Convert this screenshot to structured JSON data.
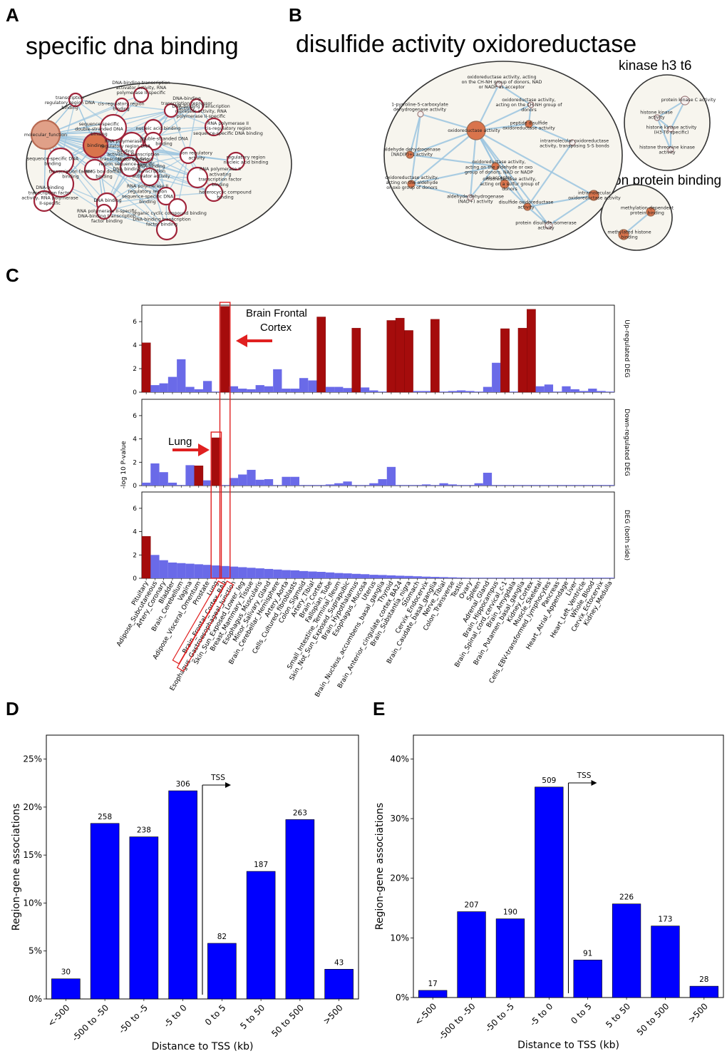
{
  "panels": {
    "a": {
      "label": "A",
      "title": "specific dna binding",
      "nodes": [
        {
          "text": "DNA-binding transcription activator activity, RNA polymerase II-specific"
        },
        {
          "text": "DNA-binding transcription repressor activity"
        },
        {
          "text": "transcription regulatory region DNA binding"
        },
        {
          "text": "cis-regulatory region binding"
        },
        {
          "text": "DNA-binding transcription repressor activity, RNA polymerase II-specific"
        },
        {
          "text": "sequence-specific double-stranded DNA binding"
        },
        {
          "text": "nucleic acid binding"
        },
        {
          "text": "molecular_function"
        },
        {
          "text": "binding"
        },
        {
          "text": "RNA polymerase II cis-regulatory region sequence-specific DNA binding"
        },
        {
          "text": "double-stranded DNA binding"
        },
        {
          "text": "RNA polymerase II regulatory region DNA binding"
        },
        {
          "text": "HMG box domain binding"
        },
        {
          "text": "activating transcription factor binding"
        },
        {
          "text": "ion regulatory activity"
        },
        {
          "text": "sequence-specific DNA binding"
        },
        {
          "text": "transcription regulatory region sequence-specific DNA binding"
        },
        {
          "text": "DNA-binding transcription activator activity"
        },
        {
          "text": "RNA polymerase II activating transcription factor binding"
        },
        {
          "text": "transcription factor binding"
        },
        {
          "text": "regulatory region nucleic acid binding"
        },
        {
          "text": "DNA-binding transcription factor activity, RNA polymerase II-specific"
        },
        {
          "text": "DNA binding"
        },
        {
          "text": "RNA polymerase II regulatory region sequence-specific DNA binding"
        },
        {
          "text": "heterocyclic compound binding"
        },
        {
          "text": "organic cyclic compound binding"
        },
        {
          "text": "RNA polymerase II-specific DNA-binding transcription factor binding"
        },
        {
          "text": "DNA-binding transcription factor binding"
        }
      ]
    },
    "b": {
      "label": "B",
      "title": "disulfide activity oxidoreductase",
      "subtitle1": "kinase h3 t6",
      "subtitle2": "methylation protein binding",
      "nodes": [
        {
          "text": "oxidoreductase activity, acting on the CH-NH group of donors, NAD or NADP as acceptor"
        },
        {
          "text": "1-pyrroline-5-carboxylate dehydrogenase activity"
        },
        {
          "text": "oxidoreductase activity, acting on the CH-NH group of donors"
        },
        {
          "text": "oxidoreductase activity"
        },
        {
          "text": "peptide disulfide oxidoreductase activity"
        },
        {
          "text": "aldehyde dehydrogenase [NAD(P)+] activity"
        },
        {
          "text": "oxidoreductase activity, acting on the aldehyde or oxo group of donors, NAD or NADP as acceptor"
        },
        {
          "text": "intramolecular oxidoreductase activity, transposing S-S bonds"
        },
        {
          "text": "oxidoreductase activity, acting on the aldehyde or oxo group of donors"
        },
        {
          "text": "oxidoreductase activity, acting on a sulfur group of donors"
        },
        {
          "text": "aldehyde dehydrogenase (NAD+) activity"
        },
        {
          "text": "disulfide oxidoreductase activity"
        },
        {
          "text": "intramolecular oxidoreductase activity"
        },
        {
          "text": "protein disulfide isomerase activity"
        },
        {
          "text": "protein kinase C activity"
        },
        {
          "text": "histone kinase activity"
        },
        {
          "text": "histone kinase activity (H3-T6 specific)"
        },
        {
          "text": "histone threonine kinase activity"
        },
        {
          "text": "methylation-dependent protein binding"
        },
        {
          "text": "methylated histone binding"
        }
      ]
    },
    "c": {
      "label": "C"
    },
    "d": {
      "label": "D"
    },
    "e": {
      "label": "E"
    }
  },
  "colors": {
    "up_bar": "#a50c0c",
    "normal_bar": "#6a6ae8",
    "dist_bar": "#0000ff",
    "network_edge": "#9cc5e0",
    "node_fill": "#d9744c",
    "node_ring": "#a0243a",
    "cluster_bg": "#f7f5ee",
    "highlight": "#e02020"
  },
  "chart_data": [
    {
      "type": "bar",
      "id": "C-upregulated",
      "title": "",
      "ylabel": "-log 10 P-value",
      "side_label": "Up-regulated DEG",
      "ylim": [
        0,
        7.4
      ],
      "yticks": [
        "0",
        "2",
        "4",
        "6"
      ],
      "categories": [
        "Pituitary",
        "Adipose_Subcutaneous",
        "Artery_Coronary",
        "Bladder",
        "Brain_Cerebellum",
        "Vagina",
        "Adipose_Visceral_Omentum",
        "Prostate",
        "Lung",
        "Brain_Frontal_Cortex_BA9",
        "Esophagus_Gastroesophageal_Junction",
        "Skin_Sun_Exposed_Lower_leg",
        "Breast_Mammary_Tissue",
        "Esophagus_Muscularis",
        "Minor_Salivary_Gland",
        "Brain_Cerebellar_Hemisphere",
        "Artery_Aorta",
        "Cells_Cultured_fibroblasts",
        "Colon_Sigmoid",
        "Artery_Tibial",
        "Brain_Cortex",
        "Fallopian_Tube",
        "Small_Intestine_Terminal_Ileum",
        "Skin_Not_Sun_Exposed_Suprapubic",
        "Brain_Hypothalamus",
        "Esophagus_Mucosa",
        "Uterus",
        "Brain_Nucleus_accumbens_basal_ganglia",
        "Thyroid",
        "Brain_Anterior_cingulate_cortex_BA24",
        "Brain_Substantia_nigra",
        "Stomach",
        "Cervix_Endocervix",
        "Brain_Caudate_basal_ganglia",
        "Nerve_Tibial",
        "Colon_Transverse",
        "Testis",
        "Ovary",
        "Spleen",
        "Adrenal_Gland",
        "Brain_Hippocampus",
        "Brain_Spinal_cord_cervical_c-1",
        "Brain_Amygdala",
        "Brain_Putamen_basal_ganglia",
        "Kidney_Cortex",
        "Muscle_Skeletal",
        "Cells_EBV-transformed_lymphocytes",
        "Pancreas",
        "Heart_Atrial_Appendage",
        "Liver",
        "Heart_Left_Ventricle",
        "Whole_Blood",
        "Cervix_Ectocervix",
        "Kidney_Medulla"
      ],
      "values": [
        4.2,
        0.6,
        0.75,
        1.3,
        2.8,
        0.45,
        0.25,
        0.95,
        0.05,
        7.3,
        0.5,
        0.3,
        0.25,
        0.6,
        0.5,
        1.95,
        0.3,
        0.3,
        1.2,
        1.0,
        6.4,
        0.45,
        0.45,
        0.35,
        5.45,
        0.4,
        0.15,
        0.05,
        6.1,
        6.3,
        5.25,
        0.1,
        0.1,
        6.2,
        0.05,
        0.1,
        0.15,
        0.1,
        0.05,
        0.45,
        2.5,
        5.4,
        0.05,
        5.45,
        7.05,
        0.5,
        0.65,
        0.05,
        0.5,
        0.25,
        0.1,
        0.3,
        0.1,
        0.05
      ],
      "highlight": [
        0,
        9,
        20,
        24,
        28,
        29,
        30,
        33,
        41,
        43,
        44
      ],
      "annotation": "Brain Frontal\nCortex"
    },
    {
      "type": "bar",
      "id": "C-downregulated",
      "side_label": "Down-regulated DEG",
      "ylim": [
        0,
        7.4
      ],
      "yticks": [
        "0",
        "2",
        "4",
        "6"
      ],
      "values": [
        0.25,
        1.9,
        1.15,
        0.25,
        0.05,
        1.75,
        1.7,
        0.45,
        4.1,
        0.05,
        0.65,
        0.95,
        1.35,
        0.5,
        0.55,
        0.05,
        0.75,
        0.75,
        0.05,
        0.05,
        0.05,
        0.1,
        0.2,
        0.35,
        0.05,
        0.05,
        0.2,
        0.55,
        1.6,
        0.05,
        0.05,
        0.05,
        0.1,
        0.05,
        0.2,
        0.1,
        0.05,
        0.05,
        0.2,
        1.1,
        0.05,
        0.05,
        0.05,
        0.05,
        0.05,
        0.05,
        0.05,
        0.05,
        0.05,
        0.05,
        0.05,
        0.05,
        0.05,
        0.05
      ],
      "highlight": [
        6,
        8
      ],
      "annotation": "Lung"
    },
    {
      "type": "bar",
      "id": "C-both",
      "side_label": "DEG (both side)",
      "ylim": [
        0,
        7.4
      ],
      "yticks": [
        "0",
        "2",
        "4",
        "6"
      ],
      "values": [
        3.6,
        2.0,
        1.55,
        1.35,
        1.3,
        1.25,
        1.2,
        1.15,
        1.1,
        1.05,
        1.0,
        0.95,
        0.9,
        0.85,
        0.8,
        0.75,
        0.7,
        0.68,
        0.62,
        0.58,
        0.55,
        0.5,
        0.45,
        0.42,
        0.38,
        0.35,
        0.3,
        0.28,
        0.25,
        0.22,
        0.2,
        0.17,
        0.14,
        0.12,
        0.1,
        0.08,
        0.06,
        0.05,
        0.05,
        0.05,
        0.05,
        0.05,
        0.05,
        0.05,
        0.05,
        0.05,
        0.05,
        0.05,
        0.05,
        0.05,
        0.05,
        0.05,
        0.05,
        0.05
      ],
      "highlight": [
        0
      ]
    },
    {
      "type": "bar",
      "id": "D",
      "xlabel": "Distance to TSS (kb)",
      "ylabel": "Region-gene associations",
      "ylim": [
        0,
        27.5
      ],
      "yticks": [
        "0%",
        "5%",
        "10%",
        "15%",
        "20%",
        "25%"
      ],
      "categories": [
        "<-500",
        "-500 to -50",
        "-50 to -5",
        "-5 to 0",
        "0 to 5",
        "5 to 50",
        "50 to 500",
        ">500"
      ],
      "values": [
        2.1,
        18.3,
        16.9,
        21.7,
        5.8,
        13.3,
        18.7,
        3.1
      ],
      "labels": [
        "30",
        "258",
        "238",
        "306",
        "82",
        "187",
        "263",
        "43"
      ],
      "annotation": "TSS"
    },
    {
      "type": "bar",
      "id": "E",
      "xlabel": "Distance to TSS (kb)",
      "ylabel": "Region-gene associations",
      "ylim": [
        0,
        44
      ],
      "yticks": [
        "0%",
        "10%",
        "20%",
        "30%",
        "40%"
      ],
      "categories": [
        "<-500",
        "-500 to -50",
        "-50 to -5",
        "-5 to 0",
        "0 to 5",
        "5 to 50",
        "50 to 500",
        ">500"
      ],
      "values": [
        1.2,
        14.4,
        13.2,
        35.3,
        6.3,
        15.7,
        12.0,
        1.9
      ],
      "labels": [
        "17",
        "207",
        "190",
        "509",
        "91",
        "226",
        "173",
        "28"
      ],
      "annotation": "TSS"
    }
  ]
}
